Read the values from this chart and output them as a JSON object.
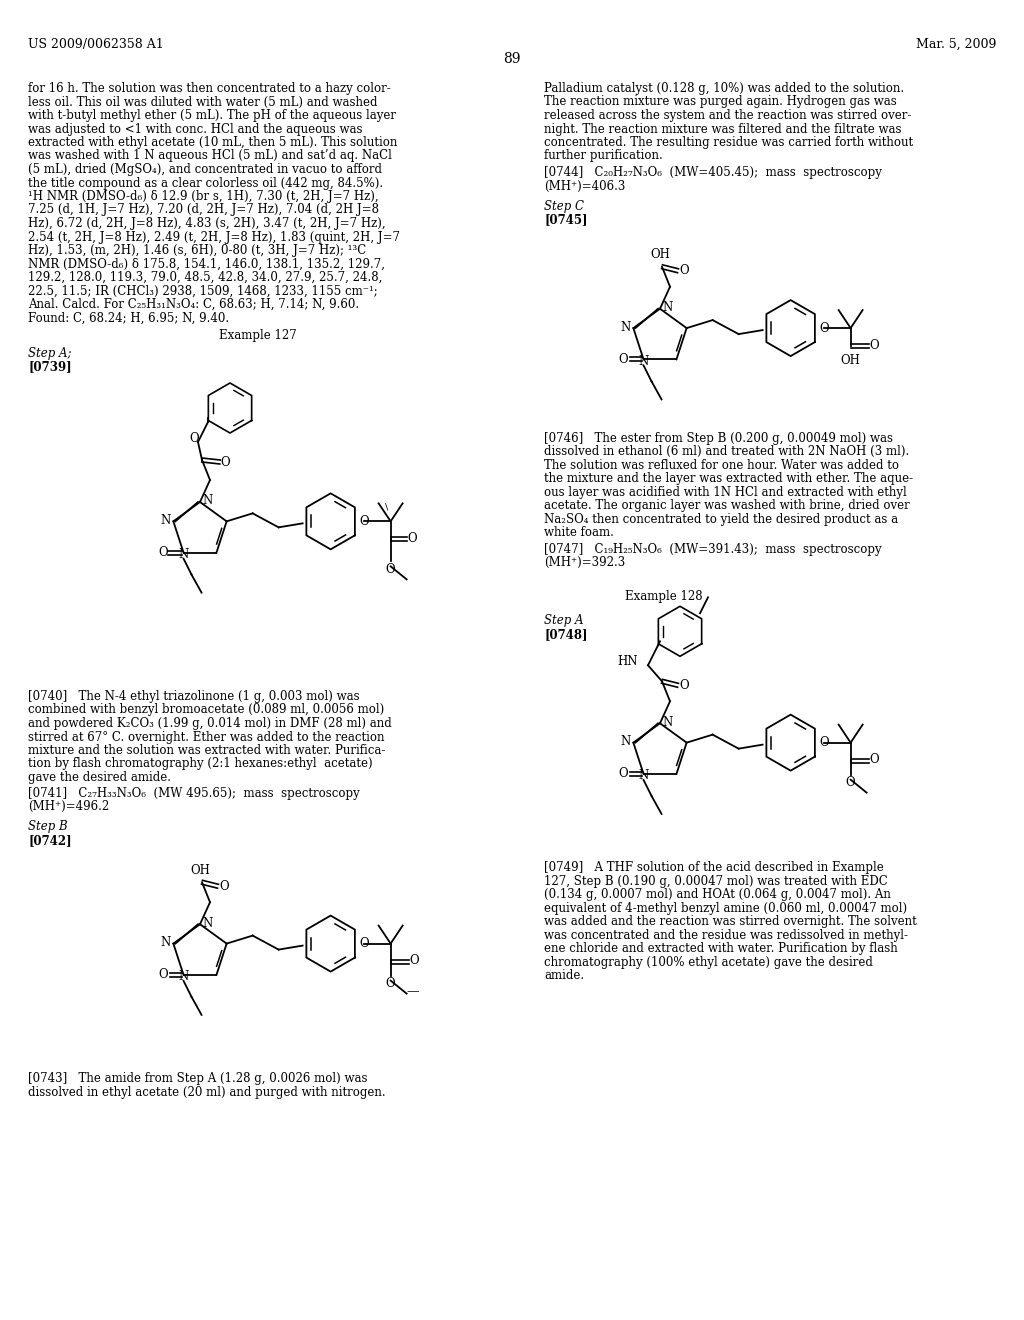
{
  "page_number": "89",
  "header_left": "US 2009/0062358 A1",
  "header_right": "Mar. 5, 2009",
  "background_color": "#ffffff",
  "text_color": "#000000",
  "body_text_left": [
    "for 16 h. The solution was then concentrated to a hazy color-",
    "less oil. This oil was diluted with water (5 mL) and washed",
    "with t-butyl methyl ether (5 mL). The pH of the aqueous layer",
    "was adjusted to <1 with conc. HCl and the aqueous was",
    "extracted with ethyl acetate (10 mL, then 5 mL). This solution",
    "was washed with 1 N aqueous HCl (5 mL) and sat’d aq. NaCl",
    "(5 mL), dried (MgSO₄), and concentrated in vacuo to afford",
    "the title compound as a clear colorless oil (442 mg, 84.5%).",
    "¹H NMR (DMSO-d₆) δ 12.9 (br s, 1H), 7.30 (t, 2H, J=7 Hz),",
    "7.25 (d, 1H, J=7 Hz), 7.20 (d, 2H, J=7 Hz), 7.04 (d, 2H J=8",
    "Hz), 6.72 (d, 2H, J=8 Hz), 4.83 (s, 2H), 3.47 (t, 2H, J=7 Hz),",
    "2.54 (t, 2H, J=8 Hz), 2.49 (t, 2H, J=8 Hz), 1.83 (quint, 2H, J=7",
    "Hz), 1.53, (m, 2H), 1.46 (s, 6H), 0-80 (t, 3H, J=7 Hz); ¹³C",
    "NMR (DMSO-d₆) δ 175.8, 154.1, 146.0, 138.1, 135.2, 129.7,",
    "129.2, 128.0, 119.3, 79.0, 48.5, 42.8, 34.0, 27.9, 25.7, 24.8,",
    "22.5, 11.5; IR (CHCl₃) 2938, 1509, 1468, 1233, 1155 cm⁻¹;",
    "Anal. Calcd. For C₂₅H₃₁N₃O₄: C, 68.63; H, 7.14; N, 9.60.",
    "Found: C, 68.24; H, 6.95; N, 9.40."
  ],
  "right_col_text_top": [
    "Palladium catalyst (0.128 g, 10%) was added to the solution.",
    "The reaction mixture was purged again. Hydrogen gas was",
    "released across the system and the reaction was stirred over-",
    "night. The reaction mixture was filtered and the filtrate was",
    "concentrated. The resulting residue was carried forth without",
    "further purification."
  ],
  "bracket_0744": "[0744]   C₂₀H₂₇N₃O₆  (MW=405.45);  mass  spectroscopy",
  "bracket_0744b": "(MH⁺)=406.3",
  "bracket_0746_text": [
    "[0746]   The ester from Step B (0.200 g, 0.00049 mol) was",
    "dissolved in ethanol (6 ml) and treated with 2N NaOH (3 ml).",
    "The solution was refluxed for one hour. Water was added to",
    "the mixture and the layer was extracted with ether. The aque-",
    "ous layer was acidified with 1N HCl and extracted with ethyl",
    "acetate. The organic layer was washed with brine, dried over",
    "Na₂SO₄ then concentrated to yield the desired product as a",
    "white foam."
  ],
  "bracket_0747": "[0747]   C₁₉H₂₅N₃O₆  (MW=391.43);  mass  spectroscopy",
  "bracket_0747b": "(MH⁺)=392.3",
  "bracket_0740_text": [
    "[0740]   The N-4 ethyl triazolinone (1 g, 0.003 mol) was",
    "combined with benzyl bromoacetate (0.089 ml, 0.0056 mol)",
    "and powdered K₂CO₃ (1.99 g, 0.014 mol) in DMF (28 ml) and",
    "stirred at 67° C. overnight. Ether was added to the reaction",
    "mixture and the solution was extracted with water. Purifica-",
    "tion by flash chromatography (2:1 hexanes:ethyl  acetate)",
    "gave the desired amide."
  ],
  "bracket_0741": "[0741]   C₂₇H₃₃N₃O₆  (MW 495.65);  mass  spectroscopy",
  "bracket_0741b": "(MH⁺)=496.2",
  "bracket_0749_text": [
    "[0749]   A THF solution of the acid described in Example",
    "127, Step B (0.190 g, 0.00047 mol) was treated with EDC",
    "(0.134 g, 0.0007 mol) and HOAt (0.064 g, 0.0047 mol). An",
    "equivalent of 4-methyl benzyl amine (0.060 ml, 0.00047 mol)",
    "was added and the reaction was stirred overnight. The solvent",
    "was concentrated and the residue was redissolved in methyl-",
    "ene chloride and extracted with water. Purification by flash",
    "chromatography (100% ethyl acetate) gave the desired",
    "amide."
  ],
  "step_b_text": [
    "[0743]   The amide from Step A (1.28 g, 0.0026 mol) was",
    "dissolved in ethyl acetate (20 ml) and purged with nitrogen."
  ]
}
